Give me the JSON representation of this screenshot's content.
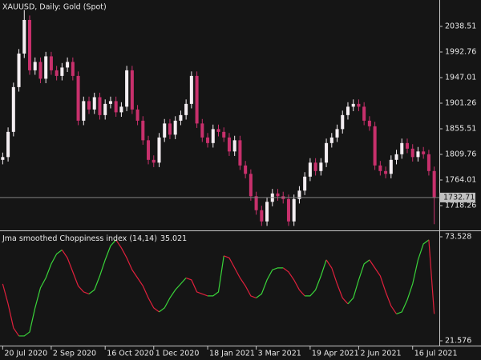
{
  "chart_data": [
    {
      "type": "candlestick",
      "title": "XAUUSD, Daily:  Gold (Spot)",
      "up_color": "#f4eef2",
      "down_color": "#c8306c",
      "price_line_color": "#808080",
      "xlim": [
        -0.5,
        80.5
      ],
      "xticks": [
        {
          "value": 0,
          "label": "20 Jul 2020"
        },
        {
          "value": 9,
          "label": "2 Sep 2020"
        },
        {
          "value": 19,
          "label": "16 Oct 2020"
        },
        {
          "value": 28,
          "label": "1 Dec 2020"
        },
        {
          "value": 38,
          "label": "18 Jan 2021"
        },
        {
          "value": 47,
          "label": "3 Mar 2021"
        },
        {
          "value": 57,
          "label": "19 Apr 2021"
        },
        {
          "value": 66,
          "label": "2 Jun 2021"
        },
        {
          "value": 76,
          "label": "16 Jul 2021"
        }
      ],
      "ylim": [
        1673.94,
        2085.69
      ],
      "yticks": [
        2038.51,
        1992.76,
        1947.01,
        1901.26,
        1855.51,
        1809.76,
        1764.01,
        1718.26
      ],
      "open": [
        1800,
        1805,
        1850,
        1930,
        1990,
        2050,
        1960,
        1975,
        1945,
        1985,
        1960,
        1950,
        1965,
        1975,
        1950,
        1870,
        1905,
        1890,
        1912,
        1880,
        1900,
        1905,
        1885,
        1895,
        1960,
        1890,
        1870,
        1835,
        1800,
        1795,
        1840,
        1865,
        1845,
        1870,
        1880,
        1900,
        1950,
        1865,
        1840,
        1830,
        1855,
        1850,
        1840,
        1815,
        1835,
        1790,
        1775,
        1735,
        1710,
        1690,
        1725,
        1740,
        1735,
        1730,
        1690,
        1730,
        1745,
        1770,
        1795,
        1780,
        1795,
        1830,
        1840,
        1855,
        1880,
        1895,
        1900,
        1895,
        1870,
        1860,
        1790,
        1780,
        1775,
        1800,
        1810,
        1830,
        1820,
        1805,
        1815,
        1810,
        1780
      ],
      "high": [
        1813,
        1858,
        1938,
        1998,
        2068,
        2058,
        1983,
        1983,
        1993,
        1993,
        1968,
        1973,
        1983,
        1983,
        1958,
        1913,
        1913,
        1920,
        1920,
        1908,
        1913,
        1913,
        1903,
        1968,
        1968,
        1898,
        1878,
        1843,
        1808,
        1848,
        1873,
        1873,
        1878,
        1888,
        1908,
        1958,
        1958,
        1873,
        1848,
        1863,
        1863,
        1858,
        1848,
        1843,
        1843,
        1798,
        1783,
        1743,
        1718,
        1733,
        1748,
        1748,
        1743,
        1738,
        1738,
        1753,
        1778,
        1803,
        1803,
        1803,
        1838,
        1848,
        1863,
        1888,
        1903,
        1908,
        1908,
        1903,
        1878,
        1868,
        1798,
        1788,
        1808,
        1818,
        1838,
        1838,
        1828,
        1823,
        1823,
        1818,
        1788
      ],
      "low": [
        1792,
        1797,
        1842,
        1922,
        1982,
        1952,
        1952,
        1937,
        1937,
        1952,
        1942,
        1942,
        1957,
        1942,
        1862,
        1862,
        1882,
        1882,
        1872,
        1872,
        1892,
        1877,
        1877,
        1887,
        1882,
        1862,
        1827,
        1792,
        1787,
        1787,
        1832,
        1837,
        1837,
        1862,
        1872,
        1892,
        1857,
        1832,
        1822,
        1822,
        1842,
        1832,
        1807,
        1807,
        1782,
        1767,
        1727,
        1702,
        1682,
        1682,
        1717,
        1727,
        1722,
        1682,
        1682,
        1722,
        1737,
        1762,
        1772,
        1772,
        1787,
        1822,
        1832,
        1847,
        1872,
        1887,
        1887,
        1862,
        1852,
        1782,
        1772,
        1767,
        1767,
        1792,
        1802,
        1812,
        1797,
        1797,
        1802,
        1772,
        1685
      ],
      "close": [
        1805,
        1850,
        1930,
        1990,
        2050,
        1960,
        1975,
        1945,
        1985,
        1960,
        1950,
        1965,
        1975,
        1950,
        1870,
        1905,
        1890,
        1912,
        1880,
        1900,
        1905,
        1885,
        1895,
        1960,
        1890,
        1870,
        1835,
        1800,
        1795,
        1840,
        1865,
        1845,
        1870,
        1880,
        1900,
        1950,
        1865,
        1840,
        1830,
        1855,
        1850,
        1840,
        1815,
        1835,
        1790,
        1775,
        1735,
        1710,
        1690,
        1725,
        1740,
        1735,
        1730,
        1690,
        1730,
        1745,
        1770,
        1795,
        1780,
        1795,
        1830,
        1840,
        1855,
        1880,
        1895,
        1900,
        1895,
        1870,
        1860,
        1790,
        1780,
        1775,
        1800,
        1810,
        1830,
        1820,
        1805,
        1815,
        1810,
        1780,
        1732.71
      ]
    },
    {
      "type": "line",
      "title": "Jma smoothed Choppiness index (14,14)",
      "up_color": "#3ad43a",
      "down_color": "#e0203c",
      "xlim": [
        -0.5,
        80.5
      ],
      "ylim": [
        19.18,
        75.93
      ],
      "yticks": [
        73.528,
        21.576
      ],
      "values": [
        50,
        40,
        28,
        24,
        24,
        26,
        38,
        48,
        53,
        60,
        65,
        67,
        63,
        56,
        49,
        46,
        45,
        47,
        54,
        62,
        69,
        72,
        68,
        63,
        57,
        53,
        49,
        43,
        38,
        36,
        38,
        43,
        47,
        50,
        53,
        52,
        46,
        45,
        44,
        44,
        46,
        64,
        63,
        58,
        53,
        49,
        44,
        43,
        45,
        52,
        57,
        58,
        58,
        56,
        52,
        47,
        44,
        44,
        47,
        54,
        62,
        58,
        50,
        43,
        40,
        43,
        52,
        60,
        62,
        58,
        54,
        46,
        39,
        35,
        36,
        42,
        50,
        62,
        70,
        72,
        35.021
      ]
    }
  ]
}
